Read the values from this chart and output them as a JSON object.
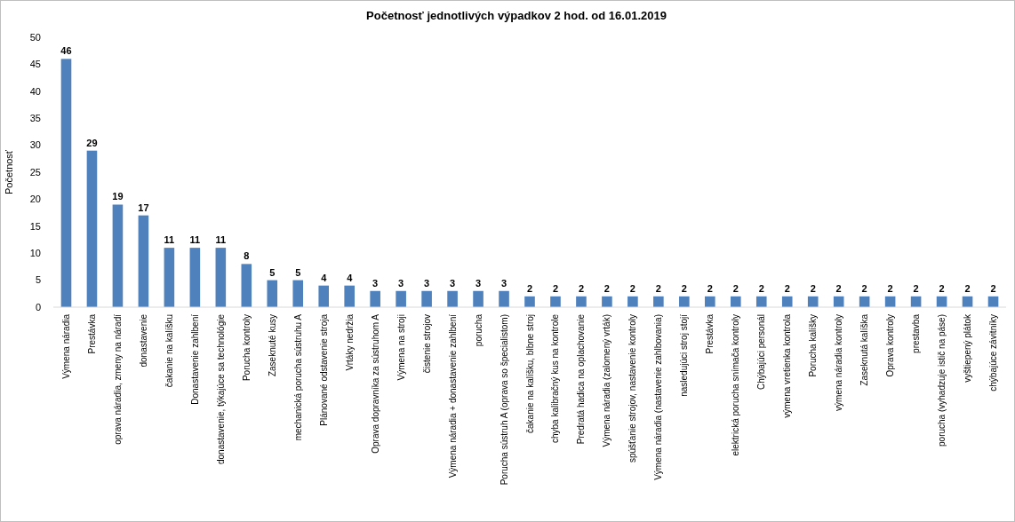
{
  "chart_data": {
    "type": "bar",
    "title": "Početnosť jednotlivých výpadkov 2 hod. od 16.01.2019",
    "ylabel": "Početnosť",
    "categories": [
      "Výmena náradia",
      "Prestávka",
      "oprava náradia, zmeny na náradí",
      "donastavenie",
      "čakanie na kalíšku",
      "Donastavenie zahlbení",
      "donastavenie, týkajúce sa technológie",
      "Porucha kontroly",
      "Zaseknuté kusy",
      "mechanická porucha sústruhu A",
      "Plánované odstavenie stroja",
      "Vrtáky nedržia",
      "Oprava dopravníka za sústruhom A",
      "Výmena na stroji",
      "čistenie strojov",
      "Výmena náradia + donastavenie zahlbení",
      "porucha",
      "Porucha sústruh A (oprava so špecialistom)",
      "čakanie na kalíšku, blbne stroj",
      "chyba kalibračný kus na kontrole",
      "Predratá hadica na oplachovanie",
      "Výmena náradia (zalomený vrták)",
      "spúšťanie strojov, nastavenie kontroly",
      "Výmena náradia (nastavenie zahlbovania)",
      "nasledujúci stroj stojí",
      "Prestávka",
      "elektrická porucha snímača kontroly",
      "Chýbajúci personál",
      "výmena vretienka kontrola",
      "Porucha kalíšky",
      "výmena náradia kontroly",
      "Zaseknutá kalíška",
      "Oprava kontroly",
      "prestavba",
      "porucha (vyhadzuje istič na páse)",
      "vyštiepený plátok",
      "chýbajúce závitníky"
    ],
    "values": [
      46,
      29,
      19,
      17,
      11,
      11,
      11,
      8,
      5,
      5,
      4,
      4,
      3,
      3,
      3,
      3,
      3,
      3,
      2,
      2,
      2,
      2,
      2,
      2,
      2,
      2,
      2,
      2,
      2,
      2,
      2,
      2,
      2,
      2,
      2,
      2,
      2
    ],
    "color": "#4f81bd",
    "ylim": [
      0,
      50
    ],
    "yticks": [
      0,
      5,
      10,
      15,
      20,
      25,
      30,
      35,
      40,
      45,
      50
    ],
    "data_labels": true
  }
}
